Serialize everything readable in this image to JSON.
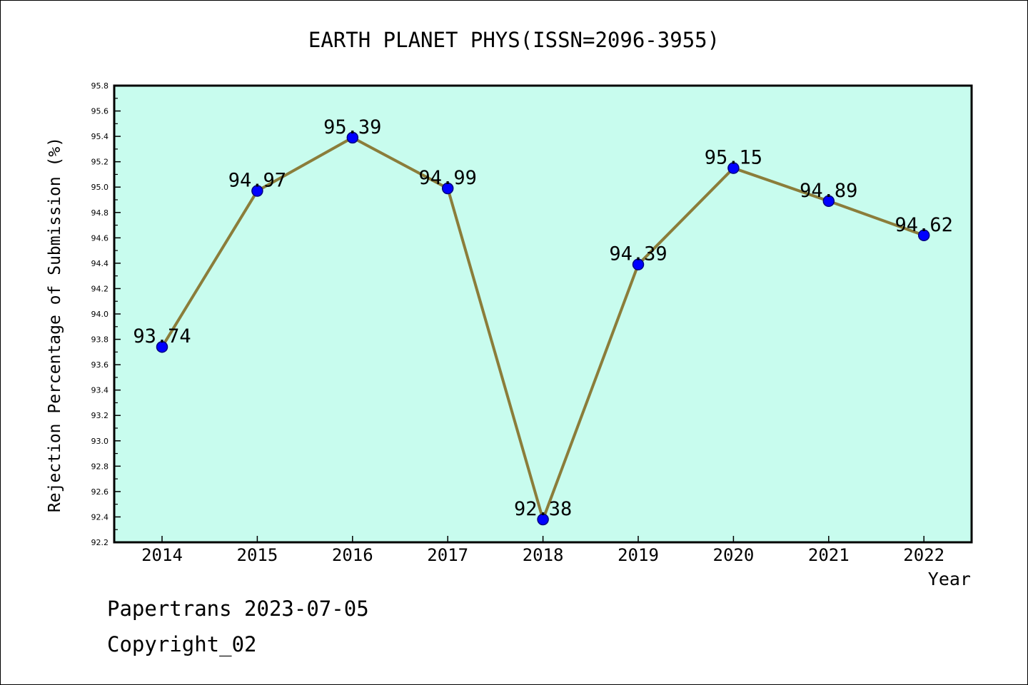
{
  "chart_data": {
    "type": "line",
    "title": "EARTH PLANET PHYS(ISSN=2096-3955)",
    "xlabel": "Year",
    "ylabel": "Rejection Percentage of Submission (%)",
    "categories": [
      "2014",
      "2015",
      "2016",
      "2017",
      "2018",
      "2019",
      "2020",
      "2021",
      "2022"
    ],
    "values": [
      93.74,
      94.97,
      95.39,
      94.99,
      92.38,
      94.39,
      95.15,
      94.89,
      94.62
    ],
    "data_labels": [
      "93.74",
      "94.97",
      "95.39",
      "94.99",
      "92.38",
      "94.39",
      "95.15",
      "94.89",
      "94.62"
    ],
    "ylim": [
      92.2,
      95.8
    ],
    "y_ticks": [
      "92.2",
      "92.4",
      "92.6",
      "92.8",
      "93.0",
      "93.2",
      "93.4",
      "93.6",
      "93.8",
      "94.0",
      "94.2",
      "94.4",
      "94.6",
      "94.8",
      "95.0",
      "95.2",
      "95.4",
      "95.6",
      "95.8"
    ],
    "grid": false,
    "colors": {
      "plot_background": "#c8fcee",
      "line": "#8b7d3a",
      "marker": "#0000ff",
      "marker_edge": "#000080"
    }
  },
  "footer": {
    "line1": "Papertrans 2023-07-05",
    "line2": "Copyright_02"
  }
}
